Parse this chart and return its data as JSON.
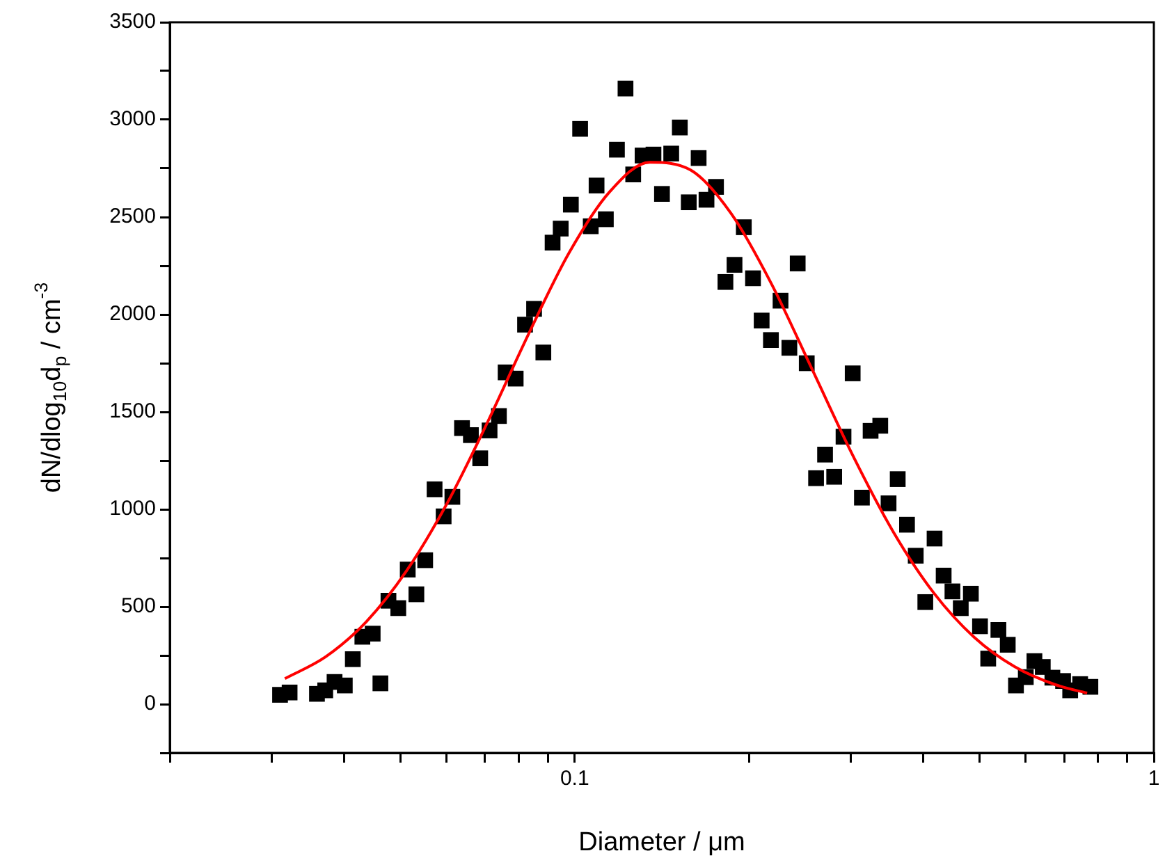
{
  "chart_data": {
    "type": "scatter",
    "xlabel": "Diameter / μm",
    "ylabel": "dN/dlog$_{10}$d$_{p}$ / cm$^{-3}$",
    "log": "x",
    "grid": false,
    "legend": false,
    "xlim": [
      0.02,
      1
    ],
    "xticks": [
      {
        "value": 0.02,
        "label": null
      },
      {
        "value": 0.03,
        "label": null
      },
      {
        "value": 0.04,
        "label": null
      },
      {
        "value": 0.05,
        "label": null
      },
      {
        "value": 0.06,
        "label": null
      },
      {
        "value": 0.07,
        "label": null
      },
      {
        "value": 0.08,
        "label": null
      },
      {
        "value": 0.09,
        "label": null
      },
      0.1,
      {
        "value": 0.2,
        "label": null
      },
      {
        "value": 0.3,
        "label": null
      },
      {
        "value": 0.4,
        "label": null
      },
      {
        "value": 0.5,
        "label": null
      },
      {
        "value": 0.6,
        "label": null
      },
      {
        "value": 0.7,
        "label": null
      },
      {
        "value": 0.8,
        "label": null
      },
      {
        "value": 0.9,
        "label": null
      },
      1
    ],
    "ylim": [
      -250,
      3500
    ],
    "yticks": [
      {
        "value": -250,
        "label": null
      },
      0,
      {
        "value": 250,
        "label": null
      },
      500,
      {
        "value": 750,
        "label": null
      },
      1000,
      {
        "value": 1250,
        "label": null
      },
      1500,
      {
        "value": 1750,
        "label": null
      },
      2000,
      {
        "value": 2250,
        "label": null
      },
      2500,
      {
        "value": 2750,
        "label": null
      },
      3000,
      {
        "value": 3250,
        "label": null
      },
      3500
    ],
    "series": [
      {
        "type": "scatter",
        "marker": "square",
        "color": "#000000",
        "x": [
          0.031,
          0.0322,
          0.0359,
          0.0371,
          0.0385,
          0.0401,
          0.0414,
          0.043,
          0.0448,
          0.0462,
          0.0477,
          0.0496,
          0.0515,
          0.0533,
          0.0552,
          0.0573,
          0.0594,
          0.0615,
          0.0639,
          0.0662,
          0.0687,
          0.0713,
          0.074,
          0.076,
          0.0791,
          0.0821,
          0.0851,
          0.0883,
          0.0916,
          0.0946,
          0.0985,
          0.1022,
          0.1066,
          0.1091,
          0.1132,
          0.1183,
          0.1224,
          0.1262,
          0.131,
          0.1368,
          0.1415,
          0.1468,
          0.1519,
          0.1574,
          0.1637,
          0.1689,
          0.1754,
          0.1821,
          0.1888,
          0.1959,
          0.2032,
          0.2103,
          0.2182,
          0.2267,
          0.2348,
          0.2427,
          0.2516,
          0.2611,
          0.2706,
          0.2806,
          0.2912,
          0.302,
          0.3133,
          0.3243,
          0.337,
          0.3483,
          0.3612,
          0.3748,
          0.388,
          0.4031,
          0.4182,
          0.4336,
          0.449,
          0.4641,
          0.4831,
          0.501,
          0.5176,
          0.539,
          0.5594,
          0.578,
          0.601,
          0.622,
          0.643,
          0.668,
          0.697,
          0.717,
          0.746,
          0.777
        ],
        "values": [
          48,
          60,
          53,
          71,
          114,
          96,
          231,
          346,
          362,
          107,
          531,
          493,
          691,
          564,
          739,
          1103,
          964,
          1064,
          1417,
          1381,
          1262,
          1405,
          1479,
          1703,
          1671,
          1948,
          2029,
          1805,
          2369,
          2441,
          2564,
          2953,
          2453,
          2662,
          2489,
          2846,
          3160,
          2719,
          2816,
          2821,
          2619,
          2826,
          2960,
          2576,
          2803,
          2589,
          2655,
          2167,
          2255,
          2448,
          2186,
          1969,
          1869,
          2071,
          1829,
          2262,
          1750,
          1160,
          1281,
          1167,
          1373,
          1698,
          1060,
          1403,
          1429,
          1031,
          1155,
          921,
          762,
          524,
          850,
          660,
          579,
          493,
          567,
          400,
          234,
          381,
          305,
          96,
          139,
          221,
          191,
          136,
          119,
          71,
          103,
          89
        ]
      },
      {
        "type": "line",
        "marker": "none",
        "line_style": "solid",
        "color": "#ff0000",
        "x": [
          0.0316,
          0.0372,
          0.0437,
          0.0513,
          0.0603,
          0.0708,
          0.0832,
          0.0977,
          0.1148,
          0.1349,
          0.1585,
          0.1862,
          0.2188,
          0.257,
          0.302,
          0.3548,
          0.4169,
          0.4898,
          0.5754,
          0.6761,
          0.767
        ],
        "values": [
          131,
          244,
          424,
          686,
          1034,
          1450,
          1898,
          2314,
          2628,
          2781,
          2742,
          2519,
          2156,
          1719,
          1278,
          885,
          571,
          343,
          192,
          100,
          57
        ]
      }
    ]
  }
}
